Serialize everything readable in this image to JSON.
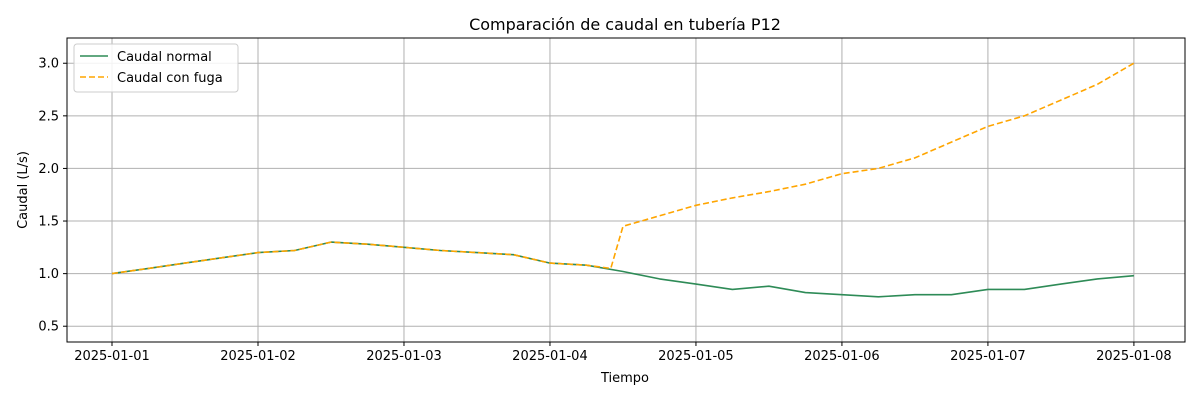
{
  "chart_data": {
    "type": "line",
    "title": "Comparación de caudal en tubería P12",
    "xlabel": "Tiempo",
    "ylabel": "Caudal (L/s)",
    "x_unit": "date",
    "xlim": [
      "2024-12-31T16:36",
      "2025-01-08T08:24"
    ],
    "ylim": [
      0.35,
      3.24
    ],
    "x_ticks": [
      "2025-01-01",
      "2025-01-02",
      "2025-01-03",
      "2025-01-04",
      "2025-01-05",
      "2025-01-06",
      "2025-01-07",
      "2025-01-08"
    ],
    "y_ticks": [
      "0.5",
      "1.0",
      "1.5",
      "2.0",
      "2.5",
      "3.0"
    ],
    "grid": true,
    "legend_position": "top-left",
    "series": [
      {
        "name": "Caudal normal",
        "color": "#2e8b57",
        "style": "solid",
        "x": [
          "2025-01-01T00:00",
          "2025-01-01T06:00",
          "2025-01-01T12:00",
          "2025-01-01T18:00",
          "2025-01-02T00:00",
          "2025-01-02T06:00",
          "2025-01-02T12:00",
          "2025-01-02T18:00",
          "2025-01-03T00:00",
          "2025-01-03T06:00",
          "2025-01-03T12:00",
          "2025-01-03T18:00",
          "2025-01-04T00:00",
          "2025-01-04T06:00",
          "2025-01-04T12:00",
          "2025-01-04T18:00",
          "2025-01-05T00:00",
          "2025-01-05T06:00",
          "2025-01-05T12:00",
          "2025-01-05T18:00",
          "2025-01-06T00:00",
          "2025-01-06T06:00",
          "2025-01-06T12:00",
          "2025-01-06T18:00",
          "2025-01-07T00:00",
          "2025-01-07T06:00",
          "2025-01-07T12:00",
          "2025-01-07T18:00",
          "2025-01-08T00:00"
        ],
        "y": [
          1.0,
          1.05,
          1.1,
          1.15,
          1.2,
          1.22,
          1.3,
          1.28,
          1.25,
          1.22,
          1.2,
          1.18,
          1.1,
          1.08,
          1.02,
          0.95,
          0.9,
          0.85,
          0.88,
          0.82,
          0.8,
          0.78,
          0.8,
          0.8,
          0.85,
          0.85,
          0.9,
          0.95,
          0.98
        ]
      },
      {
        "name": "Caudal con fuga",
        "color": "#ffa500",
        "style": "dashed",
        "x": [
          "2025-01-01T00:00",
          "2025-01-01T06:00",
          "2025-01-01T12:00",
          "2025-01-01T18:00",
          "2025-01-02T00:00",
          "2025-01-02T06:00",
          "2025-01-02T12:00",
          "2025-01-02T18:00",
          "2025-01-03T00:00",
          "2025-01-03T06:00",
          "2025-01-03T12:00",
          "2025-01-03T18:00",
          "2025-01-04T00:00",
          "2025-01-04T06:00",
          "2025-01-04T10:00",
          "2025-01-04T12:00",
          "2025-01-04T18:00",
          "2025-01-05T00:00",
          "2025-01-05T06:00",
          "2025-01-05T12:00",
          "2025-01-05T18:00",
          "2025-01-06T00:00",
          "2025-01-06T06:00",
          "2025-01-06T12:00",
          "2025-01-06T18:00",
          "2025-01-07T00:00",
          "2025-01-07T06:00",
          "2025-01-07T12:00",
          "2025-01-07T18:00",
          "2025-01-08T00:00"
        ],
        "y": [
          1.0,
          1.05,
          1.1,
          1.15,
          1.2,
          1.22,
          1.3,
          1.28,
          1.25,
          1.22,
          1.2,
          1.18,
          1.1,
          1.08,
          1.05,
          1.45,
          1.55,
          1.65,
          1.72,
          1.78,
          1.85,
          1.95,
          2.0,
          2.1,
          2.25,
          2.4,
          2.5,
          2.65,
          2.8,
          3.0
        ]
      }
    ]
  }
}
